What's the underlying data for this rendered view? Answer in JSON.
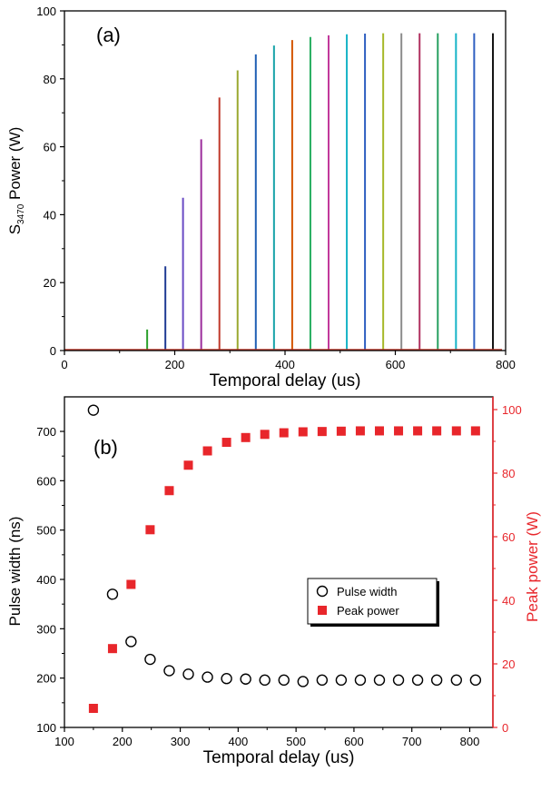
{
  "chart_data": [
    {
      "type": "line",
      "panel_label": "(a)",
      "xlabel": "Temporal delay (us)",
      "ylabel_main": "S",
      "ylabel_sub": "3470",
      "ylabel_rest": " Power (W)",
      "xlim": [
        0,
        800
      ],
      "ylim": [
        0,
        100
      ],
      "xticks": [
        0,
        200,
        400,
        600,
        800
      ],
      "yticks": [
        0,
        20,
        40,
        60,
        80,
        100
      ],
      "grid": false,
      "baseline_color": "#c0392b",
      "pulses": [
        {
          "x": 150,
          "peak": 6.2,
          "color": "#2ca02c"
        },
        {
          "x": 183,
          "peak": 24.8,
          "color": "#1f3a93"
        },
        {
          "x": 215,
          "peak": 45.0,
          "color": "#6a4bc4"
        },
        {
          "x": 248,
          "peak": 62.2,
          "color": "#9b2d9b"
        },
        {
          "x": 281,
          "peak": 74.5,
          "color": "#c0392b"
        },
        {
          "x": 314,
          "peak": 82.5,
          "color": "#9aa830"
        },
        {
          "x": 347,
          "peak": 87.2,
          "color": "#1f5fb4"
        },
        {
          "x": 380,
          "peak": 89.8,
          "color": "#17a2a8"
        },
        {
          "x": 413,
          "peak": 91.4,
          "color": "#d35400"
        },
        {
          "x": 446,
          "peak": 92.3,
          "color": "#27ae60"
        },
        {
          "x": 479,
          "peak": 92.8,
          "color": "#c2389b"
        },
        {
          "x": 512,
          "peak": 93.1,
          "color": "#17b4c7"
        },
        {
          "x": 545,
          "peak": 93.3,
          "color": "#2e5fc0"
        },
        {
          "x": 578,
          "peak": 93.4,
          "color": "#a6b82a"
        },
        {
          "x": 611,
          "peak": 93.4,
          "color": "#8c8c8c"
        },
        {
          "x": 644,
          "peak": 93.4,
          "color": "#b03060"
        },
        {
          "x": 677,
          "peak": 93.4,
          "color": "#27a060"
        },
        {
          "x": 710,
          "peak": 93.4,
          "color": "#17b4c7"
        },
        {
          "x": 743,
          "peak": 93.4,
          "color": "#2e5fc0"
        },
        {
          "x": 777,
          "peak": 93.4,
          "color": "#111111"
        }
      ]
    },
    {
      "type": "scatter",
      "panel_label": "(b)",
      "xlabel": "Temporal delay (us)",
      "ylabel": "Pulse width (ns)",
      "ylabel_right": "Peak power (W)",
      "xlim": [
        100,
        840
      ],
      "ylim": [
        100,
        770
      ],
      "ylim_right": [
        0,
        104
      ],
      "xticks": [
        100,
        200,
        300,
        400,
        500,
        600,
        700,
        800
      ],
      "yticks": [
        100,
        200,
        300,
        400,
        500,
        600,
        700
      ],
      "yticks_right": [
        0,
        20,
        40,
        60,
        80,
        100
      ],
      "grid": false,
      "right_axis_color": "#e8262b",
      "x": [
        150,
        183,
        215,
        248,
        281,
        314,
        347,
        380,
        413,
        446,
        479,
        512,
        545,
        578,
        611,
        644,
        677,
        710,
        743,
        777,
        810
      ],
      "series": [
        {
          "name": "Pulse width",
          "axis": "left",
          "marker": "open-circle",
          "color": "#000000",
          "values": [
            743,
            370,
            274,
            238,
            215,
            208,
            202,
            199,
            198,
            196,
            196,
            193,
            196,
            196,
            196,
            196,
            196,
            196,
            196,
            196,
            196
          ]
        },
        {
          "name": "Peak power",
          "axis": "right",
          "marker": "filled-square",
          "color": "#e8262b",
          "values": [
            6.0,
            24.8,
            45.0,
            62.2,
            74.5,
            82.5,
            87.0,
            89.7,
            91.2,
            92.2,
            92.7,
            93.0,
            93.1,
            93.2,
            93.3,
            93.3,
            93.3,
            93.3,
            93.3,
            93.3,
            93.3
          ]
        }
      ],
      "legend_placement": "center-right"
    }
  ]
}
